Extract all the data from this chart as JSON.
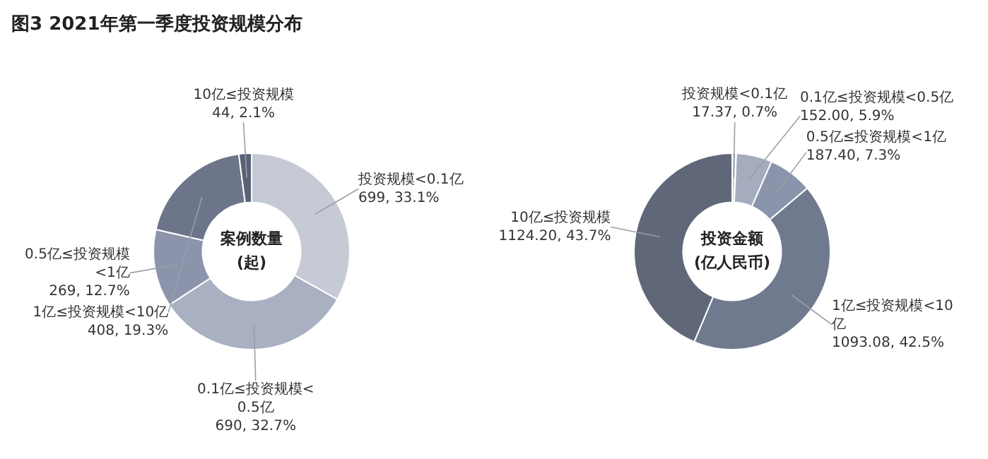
{
  "chart_data": [
    {
      "type": "donut",
      "title": "图3 2021年第一季度投资规模分布",
      "categories": [
        "投资规模<0.1亿",
        "0.1亿≤投资规模<0.5亿",
        "0.5亿≤投资规模<1亿",
        "1亿≤投资规模<10亿",
        "10亿≤投资规模"
      ],
      "values": [
        699,
        690,
        269,
        408,
        44
      ],
      "colors": [
        "#c6cad4",
        "#a9b0c2",
        "#8b94ab",
        "#6c758a",
        "#596175"
      ],
      "value_labels": [
        "699, 33.1%",
        "690, 32.7%",
        "269, 12.7%",
        "408, 19.3%",
        "44, 2.1%"
      ],
      "annotations": [
        "案例数量",
        "(起)"
      ],
      "legend": false
    },
    {
      "type": "donut",
      "categories": [
        "投资规模<0.1亿",
        "0.1亿≤投资规模<0.5亿",
        "0.5亿≤投资规模<1亿",
        "1亿≤投资规模<10亿",
        "10亿≤投资规模"
      ],
      "values": [
        17.37,
        152.0,
        187.4,
        1093.08,
        1124.2
      ],
      "colors": [
        "#d0d4dc",
        "#a4acbe",
        "#8a94aa",
        "#6f7a8e",
        "#5f6779"
      ],
      "value_labels": [
        "17.37, 0.7%",
        "152.00, 5.9%",
        "187.40, 7.3%",
        "1093.08, 42.5%",
        "1124.20, 43.7%"
      ],
      "annotations": [
        "投资金额",
        "(亿人民币)"
      ],
      "legend": false
    }
  ]
}
